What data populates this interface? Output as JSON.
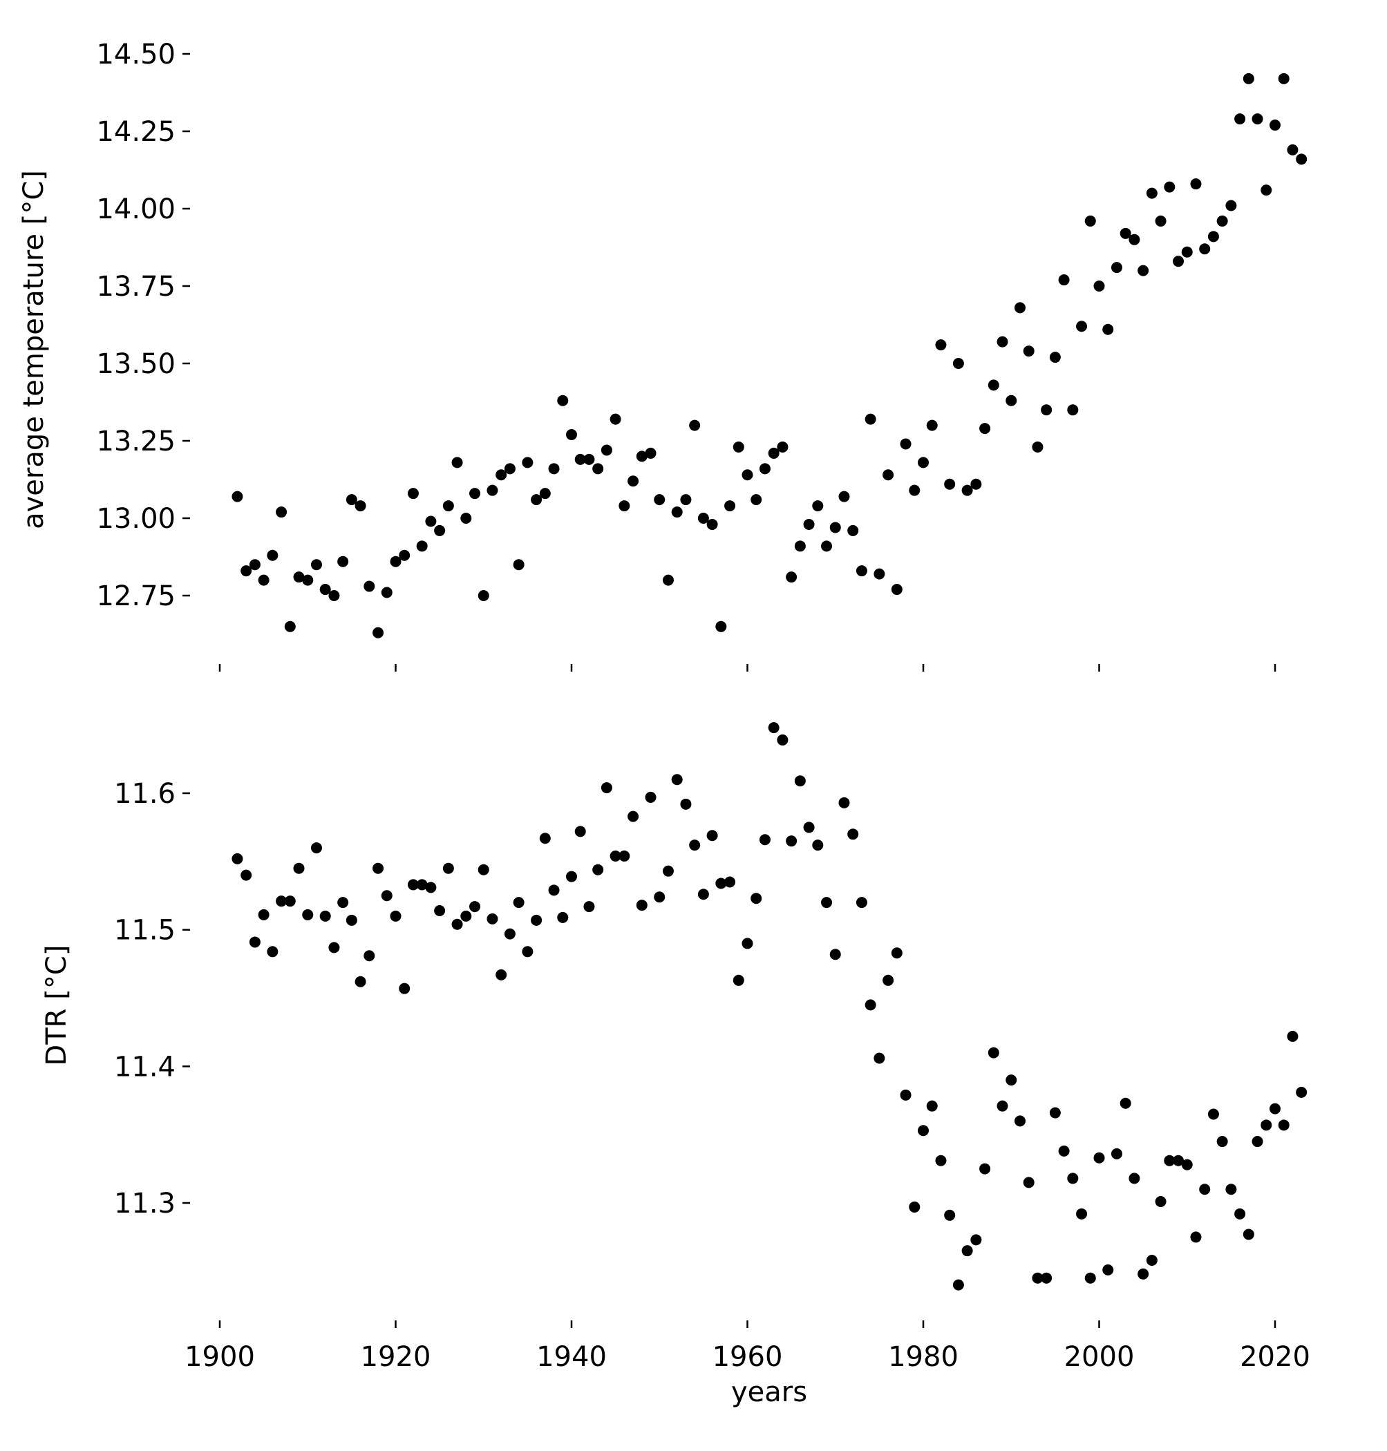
{
  "chart_data": [
    {
      "type": "scatter",
      "title": "",
      "xlabel": "",
      "ylabel": "average temperature [°C]",
      "xlim": [
        1898,
        2026
      ],
      "ylim": [
        12.555,
        14.54
      ],
      "xticks": [
        1900,
        1920,
        1940,
        1960,
        1980,
        2000,
        2020
      ],
      "xtick_labels_visible": false,
      "yticks": [
        12.75,
        13.0,
        13.25,
        13.5,
        13.75,
        14.0,
        14.25,
        14.5
      ],
      "ytick_labels": [
        "12.75",
        "13.00",
        "13.25",
        "13.50",
        "13.75",
        "14.00",
        "14.25",
        "14.50"
      ],
      "grid": false,
      "marker_color": "#000000",
      "points": [
        [
          1902,
          13.07
        ],
        [
          1903,
          12.83
        ],
        [
          1904,
          12.85
        ],
        [
          1905,
          12.8
        ],
        [
          1906,
          12.88
        ],
        [
          1907,
          13.02
        ],
        [
          1908,
          12.65
        ],
        [
          1909,
          12.81
        ],
        [
          1910,
          12.8
        ],
        [
          1911,
          12.85
        ],
        [
          1912,
          12.77
        ],
        [
          1913,
          12.75
        ],
        [
          1914,
          12.86
        ],
        [
          1915,
          13.06
        ],
        [
          1916,
          13.04
        ],
        [
          1917,
          12.78
        ],
        [
          1918,
          12.63
        ],
        [
          1919,
          12.76
        ],
        [
          1920,
          12.86
        ],
        [
          1921,
          12.88
        ],
        [
          1922,
          13.08
        ],
        [
          1923,
          12.91
        ],
        [
          1924,
          12.99
        ],
        [
          1925,
          12.96
        ],
        [
          1926,
          13.04
        ],
        [
          1927,
          13.18
        ],
        [
          1928,
          13.0
        ],
        [
          1929,
          13.08
        ],
        [
          1930,
          12.75
        ],
        [
          1931,
          13.09
        ],
        [
          1932,
          13.14
        ],
        [
          1933,
          13.16
        ],
        [
          1934,
          12.85
        ],
        [
          1935,
          13.18
        ],
        [
          1936,
          13.06
        ],
        [
          1937,
          13.08
        ],
        [
          1938,
          13.16
        ],
        [
          1939,
          13.38
        ],
        [
          1940,
          13.27
        ],
        [
          1941,
          13.19
        ],
        [
          1942,
          13.19
        ],
        [
          1943,
          13.16
        ],
        [
          1944,
          13.22
        ],
        [
          1945,
          13.32
        ],
        [
          1946,
          13.04
        ],
        [
          1947,
          13.12
        ],
        [
          1948,
          13.2
        ],
        [
          1949,
          13.21
        ],
        [
          1950,
          13.06
        ],
        [
          1951,
          12.8
        ],
        [
          1952,
          13.02
        ],
        [
          1953,
          13.06
        ],
        [
          1954,
          13.3
        ],
        [
          1955,
          13.0
        ],
        [
          1956,
          12.98
        ],
        [
          1957,
          12.65
        ],
        [
          1958,
          13.04
        ],
        [
          1959,
          13.23
        ],
        [
          1960,
          13.14
        ],
        [
          1961,
          13.06
        ],
        [
          1962,
          13.16
        ],
        [
          1963,
          13.21
        ],
        [
          1964,
          13.23
        ],
        [
          1965,
          12.81
        ],
        [
          1966,
          12.91
        ],
        [
          1967,
          12.98
        ],
        [
          1968,
          13.04
        ],
        [
          1969,
          12.91
        ],
        [
          1970,
          12.97
        ],
        [
          1971,
          13.07
        ],
        [
          1972,
          12.96
        ],
        [
          1973,
          12.83
        ],
        [
          1974,
          13.32
        ],
        [
          1975,
          12.82
        ],
        [
          1976,
          13.14
        ],
        [
          1977,
          12.77
        ],
        [
          1978,
          13.24
        ],
        [
          1979,
          13.09
        ],
        [
          1980,
          13.18
        ],
        [
          1981,
          13.3
        ],
        [
          1982,
          13.56
        ],
        [
          1983,
          13.11
        ],
        [
          1984,
          13.5
        ],
        [
          1985,
          13.09
        ],
        [
          1986,
          13.11
        ],
        [
          1987,
          13.29
        ],
        [
          1988,
          13.43
        ],
        [
          1989,
          13.57
        ],
        [
          1990,
          13.38
        ],
        [
          1991,
          13.68
        ],
        [
          1992,
          13.54
        ],
        [
          1993,
          13.23
        ],
        [
          1994,
          13.35
        ],
        [
          1995,
          13.52
        ],
        [
          1996,
          13.77
        ],
        [
          1997,
          13.35
        ],
        [
          1998,
          13.62
        ],
        [
          1999,
          13.96
        ],
        [
          2000,
          13.75
        ],
        [
          2001,
          13.61
        ],
        [
          2002,
          13.81
        ],
        [
          2003,
          13.92
        ],
        [
          2004,
          13.9
        ],
        [
          2005,
          13.8
        ],
        [
          2006,
          14.05
        ],
        [
          2007,
          13.96
        ],
        [
          2008,
          14.07
        ],
        [
          2009,
          13.83
        ],
        [
          2010,
          13.86
        ],
        [
          2011,
          14.08
        ],
        [
          2012,
          13.87
        ],
        [
          2013,
          13.91
        ],
        [
          2014,
          13.96
        ],
        [
          2015,
          14.01
        ],
        [
          2016,
          14.29
        ],
        [
          2017,
          14.42
        ],
        [
          2018,
          14.29
        ],
        [
          2019,
          14.06
        ],
        [
          2020,
          14.27
        ],
        [
          2021,
          14.42
        ],
        [
          2022,
          14.19
        ],
        [
          2023,
          14.16
        ]
      ]
    },
    {
      "type": "scatter",
      "title": "",
      "xlabel": "years",
      "ylabel": "DTR [°C]",
      "xlim": [
        1898,
        2026
      ],
      "ylim": [
        11.219,
        11.664
      ],
      "xticks": [
        1900,
        1920,
        1940,
        1960,
        1980,
        2000,
        2020
      ],
      "xtick_labels": [
        "1900",
        "1920",
        "1940",
        "1960",
        "1980",
        "2000",
        "2020"
      ],
      "yticks": [
        11.3,
        11.4,
        11.5,
        11.6
      ],
      "ytick_labels": [
        "11.3",
        "11.4",
        "11.5",
        "11.6"
      ],
      "grid": false,
      "marker_color": "#000000",
      "points": [
        [
          1902,
          11.552
        ],
        [
          1903,
          11.54
        ],
        [
          1904,
          11.491
        ],
        [
          1905,
          11.511
        ],
        [
          1906,
          11.484
        ],
        [
          1907,
          11.521
        ],
        [
          1908,
          11.521
        ],
        [
          1909,
          11.545
        ],
        [
          1910,
          11.511
        ],
        [
          1911,
          11.56
        ],
        [
          1912,
          11.51
        ],
        [
          1913,
          11.487
        ],
        [
          1914,
          11.52
        ],
        [
          1915,
          11.507
        ],
        [
          1916,
          11.462
        ],
        [
          1917,
          11.481
        ],
        [
          1918,
          11.545
        ],
        [
          1919,
          11.525
        ],
        [
          1920,
          11.51
        ],
        [
          1921,
          11.457
        ],
        [
          1922,
          11.533
        ],
        [
          1923,
          11.533
        ],
        [
          1924,
          11.531
        ],
        [
          1925,
          11.514
        ],
        [
          1926,
          11.545
        ],
        [
          1927,
          11.504
        ],
        [
          1928,
          11.51
        ],
        [
          1929,
          11.517
        ],
        [
          1930,
          11.544
        ],
        [
          1931,
          11.508
        ],
        [
          1932,
          11.467
        ],
        [
          1933,
          11.497
        ],
        [
          1934,
          11.52
        ],
        [
          1935,
          11.484
        ],
        [
          1936,
          11.507
        ],
        [
          1937,
          11.567
        ],
        [
          1938,
          11.529
        ],
        [
          1939,
          11.509
        ],
        [
          1940,
          11.539
        ],
        [
          1941,
          11.572
        ],
        [
          1942,
          11.517
        ],
        [
          1943,
          11.544
        ],
        [
          1944,
          11.604
        ],
        [
          1945,
          11.554
        ],
        [
          1946,
          11.554
        ],
        [
          1947,
          11.583
        ],
        [
          1948,
          11.518
        ],
        [
          1949,
          11.597
        ],
        [
          1950,
          11.524
        ],
        [
          1951,
          11.543
        ],
        [
          1952,
          11.61
        ],
        [
          1953,
          11.592
        ],
        [
          1954,
          11.562
        ],
        [
          1955,
          11.526
        ],
        [
          1956,
          11.569
        ],
        [
          1957,
          11.534
        ],
        [
          1958,
          11.535
        ],
        [
          1959,
          11.463
        ],
        [
          1960,
          11.49
        ],
        [
          1961,
          11.523
        ],
        [
          1962,
          11.566
        ],
        [
          1963,
          11.648
        ],
        [
          1964,
          11.639
        ],
        [
          1965,
          11.565
        ],
        [
          1966,
          11.609
        ],
        [
          1967,
          11.575
        ],
        [
          1968,
          11.562
        ],
        [
          1969,
          11.52
        ],
        [
          1970,
          11.482
        ],
        [
          1971,
          11.593
        ],
        [
          1972,
          11.57
        ],
        [
          1973,
          11.52
        ],
        [
          1974,
          11.445
        ],
        [
          1975,
          11.406
        ],
        [
          1976,
          11.463
        ],
        [
          1977,
          11.483
        ],
        [
          1978,
          11.379
        ],
        [
          1979,
          11.297
        ],
        [
          1980,
          11.353
        ],
        [
          1981,
          11.371
        ],
        [
          1982,
          11.331
        ],
        [
          1983,
          11.291
        ],
        [
          1984,
          11.24
        ],
        [
          1985,
          11.265
        ],
        [
          1986,
          11.273
        ],
        [
          1987,
          11.325
        ],
        [
          1988,
          11.41
        ],
        [
          1989,
          11.371
        ],
        [
          1990,
          11.39
        ],
        [
          1991,
          11.36
        ],
        [
          1992,
          11.315
        ],
        [
          1993,
          11.245
        ],
        [
          1994,
          11.245
        ],
        [
          1995,
          11.366
        ],
        [
          1996,
          11.338
        ],
        [
          1997,
          11.318
        ],
        [
          1998,
          11.292
        ],
        [
          1999,
          11.245
        ],
        [
          2000,
          11.333
        ],
        [
          2001,
          11.251
        ],
        [
          2002,
          11.336
        ],
        [
          2003,
          11.373
        ],
        [
          2004,
          11.318
        ],
        [
          2005,
          11.248
        ],
        [
          2006,
          11.258
        ],
        [
          2007,
          11.301
        ],
        [
          2008,
          11.331
        ],
        [
          2009,
          11.331
        ],
        [
          2010,
          11.328
        ],
        [
          2011,
          11.275
        ],
        [
          2012,
          11.31
        ],
        [
          2013,
          11.365
        ],
        [
          2014,
          11.345
        ],
        [
          2015,
          11.31
        ],
        [
          2016,
          11.292
        ],
        [
          2017,
          11.277
        ],
        [
          2018,
          11.345
        ],
        [
          2019,
          11.357
        ],
        [
          2020,
          11.369
        ],
        [
          2021,
          11.357
        ],
        [
          2022,
          11.422
        ],
        [
          2023,
          11.381
        ]
      ]
    }
  ]
}
